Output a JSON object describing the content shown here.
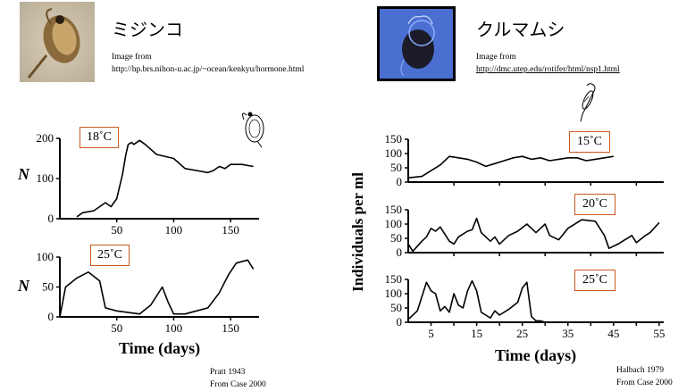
{
  "left": {
    "title": "ミジンコ",
    "source_label": "Image from",
    "source_url": "http://hp.brs.nihon-u.ac.jp/~ocean/kenkyu/hormone.html",
    "citation_1": "Pratt 1943",
    "citation_2": "From Case 2000",
    "ylabel": "N",
    "xlabel": "Time (days)",
    "panels": [
      {
        "temp": "18˚C",
        "yticks": [
          "0",
          "100",
          "200"
        ],
        "xticks": [
          "50",
          "100",
          "150"
        ]
      },
      {
        "temp": "25˚C",
        "yticks": [
          "0",
          "50",
          "100"
        ],
        "xticks": [
          "50",
          "100",
          "150"
        ]
      }
    ]
  },
  "right": {
    "title": "クルマムシ",
    "source_label": "Image from",
    "source_url": "http://dmc.utep.edu/rotifer/html/nsp1.html",
    "citation_1": "Halbach 1979",
    "citation_2": "From Case 2000",
    "ylabel": "Individuals per ml",
    "xlabel": "Time (days)",
    "panels": [
      {
        "temp": "15˚C",
        "yticks": [
          "0",
          "50",
          "100",
          "150"
        ]
      },
      {
        "temp": "20˚C",
        "yticks": [
          "0",
          "50",
          "100",
          "150"
        ]
      },
      {
        "temp": "25˚C",
        "yticks": [
          "0",
          "50",
          "100",
          "150"
        ]
      }
    ],
    "xticks": [
      "5",
      "15",
      "25",
      "35",
      "45",
      "55"
    ]
  },
  "chart_data": [
    {
      "type": "line",
      "title": "18˚C",
      "xlabel": "Time (days)",
      "ylabel": "N",
      "xlim": [
        0,
        175
      ],
      "ylim": [
        0,
        200
      ],
      "x": [
        15,
        20,
        30,
        40,
        45,
        50,
        55,
        58,
        60,
        63,
        65,
        70,
        75,
        85,
        100,
        110,
        120,
        130,
        135,
        140,
        145,
        150,
        160,
        170
      ],
      "values": [
        5,
        15,
        20,
        40,
        30,
        50,
        110,
        160,
        185,
        190,
        185,
        195,
        185,
        160,
        150,
        125,
        120,
        115,
        120,
        130,
        125,
        135,
        135,
        130
      ]
    },
    {
      "type": "line",
      "title": "25˚C",
      "xlabel": "Time (days)",
      "ylabel": "N",
      "xlim": [
        0,
        175
      ],
      "ylim": [
        0,
        110
      ],
      "x": [
        0,
        5,
        15,
        25,
        35,
        40,
        50,
        70,
        80,
        90,
        95,
        100,
        110,
        120,
        130,
        140,
        148,
        155,
        165,
        170
      ],
      "values": [
        0,
        50,
        65,
        75,
        60,
        15,
        10,
        5,
        20,
        50,
        25,
        5,
        5,
        10,
        15,
        40,
        70,
        90,
        95,
        80
      ]
    },
    {
      "type": "line",
      "title": "15˚C",
      "xlabel": "Time (days)",
      "ylabel": "Individuals per ml",
      "xlim": [
        0,
        56
      ],
      "ylim": [
        0,
        160
      ],
      "x": [
        0,
        3,
        5,
        7,
        9,
        11,
        13,
        15,
        17,
        19,
        21,
        23,
        25,
        27,
        29,
        31,
        33,
        35,
        37,
        39,
        41,
        43,
        45
      ],
      "values": [
        15,
        20,
        40,
        60,
        90,
        85,
        80,
        70,
        55,
        65,
        75,
        85,
        90,
        80,
        85,
        75,
        80,
        85,
        85,
        75,
        80,
        85,
        90
      ]
    },
    {
      "type": "line",
      "title": "20˚C",
      "xlabel": "Time (days)",
      "ylabel": "Individuals per ml",
      "xlim": [
        0,
        56
      ],
      "ylim": [
        0,
        160
      ],
      "x": [
        0,
        1,
        3,
        4,
        5,
        6,
        7,
        9,
        10,
        11,
        13,
        14,
        15,
        16,
        18,
        19,
        20,
        22,
        24,
        26,
        28,
        30,
        31,
        33,
        35,
        38,
        41,
        43,
        44,
        46,
        47,
        49,
        50,
        52,
        53,
        55
      ],
      "values": [
        30,
        5,
        40,
        55,
        85,
        75,
        90,
        40,
        30,
        55,
        75,
        80,
        120,
        70,
        40,
        55,
        30,
        60,
        75,
        100,
        70,
        100,
        60,
        45,
        85,
        115,
        110,
        60,
        15,
        30,
        40,
        60,
        35,
        60,
        70,
        105
      ]
    },
    {
      "type": "line",
      "title": "25˚C",
      "xlabel": "Time (days)",
      "ylabel": "Individuals per ml",
      "xlim": [
        0,
        56
      ],
      "ylim": [
        0,
        160
      ],
      "x": [
        0,
        2,
        3,
        4,
        5,
        6,
        7,
        8,
        9,
        10,
        11,
        12,
        13,
        14,
        15,
        16,
        17,
        18,
        19,
        20,
        22,
        24,
        25,
        26,
        27,
        28,
        29,
        30
      ],
      "values": [
        10,
        40,
        90,
        140,
        110,
        100,
        40,
        55,
        35,
        100,
        60,
        50,
        110,
        145,
        110,
        35,
        25,
        15,
        40,
        25,
        45,
        70,
        120,
        140,
        20,
        5,
        5,
        0
      ]
    }
  ]
}
